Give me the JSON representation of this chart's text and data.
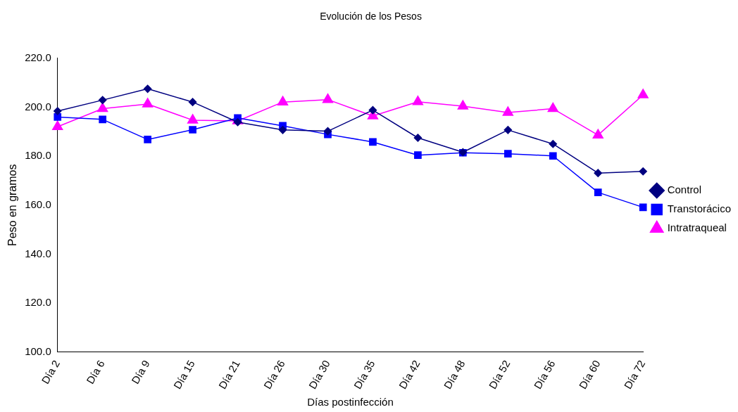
{
  "chart_data": {
    "type": "line",
    "title": "Evolución de los Pesos",
    "xlabel": "Días postinfección",
    "ylabel": "Peso en gramos",
    "categories": [
      "Día 2",
      "Día 6",
      "Día 9",
      "Día 15",
      "Día 21",
      "Día 26",
      "Día 30",
      "Día 35",
      "Día 42",
      "Día 48",
      "Día 52",
      "Día 56",
      "Día 60",
      "Día 72"
    ],
    "series": [
      {
        "name": "Control",
        "color": "#000080",
        "marker": "diamond",
        "values": [
          198.4,
          202.9,
          207.5,
          202.1,
          193.9,
          190.7,
          190.2,
          198.8,
          187.5,
          181.6,
          190.7,
          185.0,
          173.1,
          173.8
        ]
      },
      {
        "name": "Transtorácico",
        "color": "#0000ff",
        "marker": "square",
        "values": [
          196.0,
          195.0,
          186.8,
          190.8,
          195.6,
          192.4,
          188.9,
          185.8,
          180.4,
          181.4,
          181.0,
          180.1,
          165.2,
          159.1
        ]
      },
      {
        "name": "Intratraqueal",
        "color": "#ff00ff",
        "marker": "triangle",
        "values": [
          192.0,
          199.4,
          201.3,
          194.7,
          194.4,
          202.1,
          203.1,
          196.4,
          202.2,
          200.4,
          197.8,
          199.4,
          188.6,
          205.0
        ]
      }
    ],
    "ylim": [
      100,
      220
    ],
    "yticks": [
      {
        "value": 100,
        "label": "100.0"
      },
      {
        "value": 120,
        "label": "120.0"
      },
      {
        "value": 140,
        "label": "140.0"
      },
      {
        "value": 160,
        "label": "160.0"
      },
      {
        "value": 180,
        "label": "180.0"
      },
      {
        "value": 200,
        "label": "200.0"
      },
      {
        "value": 220,
        "label": "220.0"
      }
    ],
    "grid": false,
    "legend": "right",
    "line_style": "solid"
  }
}
